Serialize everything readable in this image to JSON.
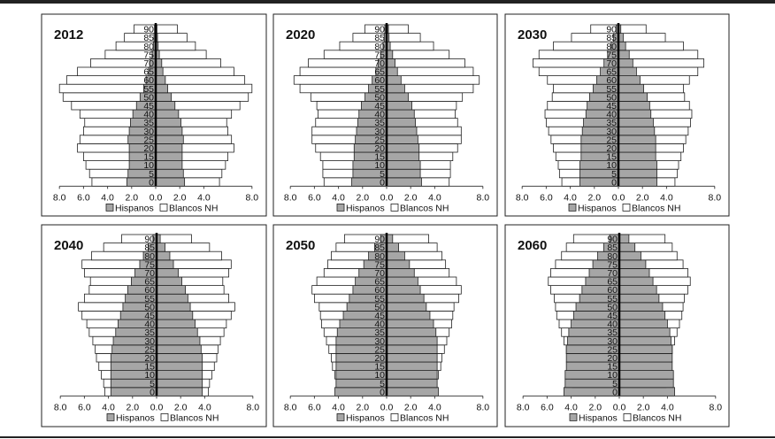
{
  "colors": {
    "hispanos": "#a6a6a6",
    "blancos": "#ffffff",
    "outline": "#222222"
  },
  "legend": {
    "hispanos": "Hispanos",
    "blancos": "Blancos NH"
  },
  "chart_data": [
    {
      "type": "bar",
      "title": "2012",
      "x_ticks": [
        "8.0",
        "6.0",
        "4.0",
        "2.0",
        "0.0",
        "2.0",
        "4.0",
        "8.0"
      ],
      "xlim": [
        -8,
        8
      ],
      "categories": [
        "0",
        "5",
        "10",
        "15",
        "20",
        "25",
        "30",
        "35",
        "40",
        "45",
        "50",
        "55",
        "60",
        "65",
        "70",
        "75",
        "80",
        "85",
        "90"
      ],
      "series": [
        {
          "name": "Hispanos",
          "values": [
            2.4,
            2.3,
            2.2,
            2.2,
            2.2,
            2.3,
            2.2,
            2.1,
            1.9,
            1.6,
            1.3,
            1.0,
            0.8,
            0.6,
            0.5,
            0.3,
            0.2,
            0.15,
            0.1
          ]
        },
        {
          "name": "Blancos NH",
          "values": [
            5.3,
            5.5,
            5.8,
            6.0,
            6.5,
            6.3,
            6.0,
            5.9,
            6.3,
            7.0,
            7.7,
            8.0,
            7.4,
            6.5,
            5.4,
            4.2,
            3.3,
            2.6,
            1.8
          ]
        }
      ]
    },
    {
      "type": "bar",
      "title": "2020",
      "x_ticks": [
        "8.0",
        "6.0",
        "4.0",
        "2.0",
        "0.0",
        "2.0",
        "4.0",
        "8.0"
      ],
      "xlim": [
        -8,
        8
      ],
      "categories": [
        "0",
        "5",
        "10",
        "15",
        "20",
        "25",
        "30",
        "35",
        "40",
        "45",
        "50",
        "55",
        "60",
        "65",
        "70",
        "75",
        "80",
        "85",
        "90"
      ],
      "series": [
        {
          "name": "Hispanos",
          "values": [
            2.9,
            2.8,
            2.8,
            2.7,
            2.7,
            2.6,
            2.5,
            2.4,
            2.3,
            2.1,
            1.8,
            1.5,
            1.2,
            0.9,
            0.7,
            0.5,
            0.3,
            0.2,
            0.15
          ]
        },
        {
          "name": "Blancos NH",
          "values": [
            5.2,
            5.3,
            5.3,
            5.5,
            5.9,
            6.2,
            6.2,
            5.9,
            5.7,
            5.8,
            6.3,
            7.2,
            7.7,
            7.2,
            6.5,
            5.2,
            3.9,
            2.8,
            1.8
          ]
        }
      ]
    },
    {
      "type": "bar",
      "title": "2030",
      "x_ticks": [
        "8.0",
        "6.0",
        "4.0",
        "2.0",
        "0.0",
        "2.0",
        "4.0",
        "8.0"
      ],
      "xlim": [
        -8,
        8
      ],
      "categories": [
        "0",
        "5",
        "10",
        "15",
        "20",
        "25",
        "30",
        "35",
        "40",
        "45",
        "50",
        "55",
        "60",
        "65",
        "70",
        "75",
        "80",
        "85",
        "90"
      ],
      "series": [
        {
          "name": "Hispanos",
          "values": [
            3.2,
            3.2,
            3.2,
            3.1,
            3.1,
            3.1,
            3.0,
            2.9,
            2.7,
            2.6,
            2.4,
            2.1,
            1.8,
            1.5,
            1.2,
            0.9,
            0.6,
            0.4,
            0.2
          ]
        },
        {
          "name": "Blancos NH",
          "values": [
            4.7,
            4.9,
            5.0,
            5.2,
            5.4,
            5.6,
            5.8,
            6.0,
            6.1,
            5.9,
            5.5,
            5.4,
            5.9,
            6.6,
            7.1,
            6.6,
            5.4,
            3.9,
            2.3
          ]
        }
      ]
    },
    {
      "type": "bar",
      "title": "2040",
      "x_ticks": [
        "8.0",
        "6.0",
        "4.0",
        "2.0",
        "0.0",
        "2.0",
        "4.0",
        "8.0"
      ],
      "xlim": [
        -8,
        8
      ],
      "categories": [
        "0",
        "5",
        "10",
        "15",
        "20",
        "25",
        "30",
        "35",
        "40",
        "45",
        "50",
        "55",
        "60",
        "65",
        "70",
        "75",
        "80",
        "85",
        "90"
      ],
      "series": [
        {
          "name": "Hispanos",
          "values": [
            3.8,
            3.8,
            3.8,
            3.8,
            3.8,
            3.7,
            3.6,
            3.4,
            3.2,
            3.0,
            2.8,
            2.6,
            2.4,
            2.1,
            1.8,
            1.4,
            1.1,
            0.7,
            0.3
          ]
        },
        {
          "name": "Blancos NH",
          "values": [
            4.3,
            4.4,
            4.6,
            4.8,
            5.0,
            5.1,
            5.3,
            5.6,
            5.8,
            6.2,
            6.5,
            6.0,
            5.6,
            5.5,
            6.0,
            6.2,
            5.4,
            4.4,
            2.9
          ]
        }
      ]
    },
    {
      "type": "bar",
      "title": "2050",
      "x_ticks": [
        "8.0",
        "6.0",
        "4.0",
        "2.0",
        "0.0",
        "2.0",
        "4.0",
        "8.0"
      ],
      "xlim": [
        -8,
        8
      ],
      "categories": [
        "0",
        "5",
        "10",
        "15",
        "20",
        "25",
        "30",
        "35",
        "40",
        "45",
        "50",
        "55",
        "60",
        "65",
        "70",
        "75",
        "80",
        "85",
        "90"
      ],
      "series": [
        {
          "name": "Hispanos",
          "values": [
            4.3,
            4.2,
            4.2,
            4.2,
            4.2,
            4.2,
            4.2,
            4.1,
            3.9,
            3.6,
            3.3,
            3.1,
            2.8,
            2.6,
            2.3,
            1.9,
            1.5,
            1.0,
            0.5
          ]
        },
        {
          "name": "Blancos NH",
          "values": [
            4.1,
            4.2,
            4.3,
            4.5,
            4.6,
            4.8,
            5.0,
            5.2,
            5.4,
            5.5,
            5.6,
            6.0,
            6.2,
            5.8,
            5.2,
            4.9,
            4.6,
            4.2,
            3.5
          ]
        }
      ]
    },
    {
      "type": "bar",
      "title": "2060",
      "x_ticks": [
        "8.0",
        "6.0",
        "4.0",
        "2.0",
        "0.0",
        "2.0",
        "4.0",
        "8.0"
      ],
      "xlim": [
        -8,
        8
      ],
      "categories": [
        "0",
        "5",
        "10",
        "15",
        "20",
        "25",
        "30",
        "35",
        "40",
        "45",
        "50",
        "55",
        "60",
        "65",
        "70",
        "75",
        "80",
        "85",
        "90"
      ],
      "series": [
        {
          "name": "Hispanos",
          "values": [
            4.6,
            4.5,
            4.5,
            4.4,
            4.4,
            4.4,
            4.3,
            4.2,
            4.0,
            3.8,
            3.6,
            3.3,
            3.1,
            2.8,
            2.5,
            2.2,
            1.8,
            1.3,
            0.8
          ]
        },
        {
          "name": "Blancos NH",
          "values": [
            3.8,
            3.9,
            4.0,
            4.2,
            4.3,
            4.4,
            4.6,
            4.8,
            5.0,
            5.2,
            5.3,
            5.4,
            5.7,
            5.9,
            5.7,
            5.3,
            4.8,
            4.4,
            3.8
          ]
        }
      ]
    }
  ]
}
